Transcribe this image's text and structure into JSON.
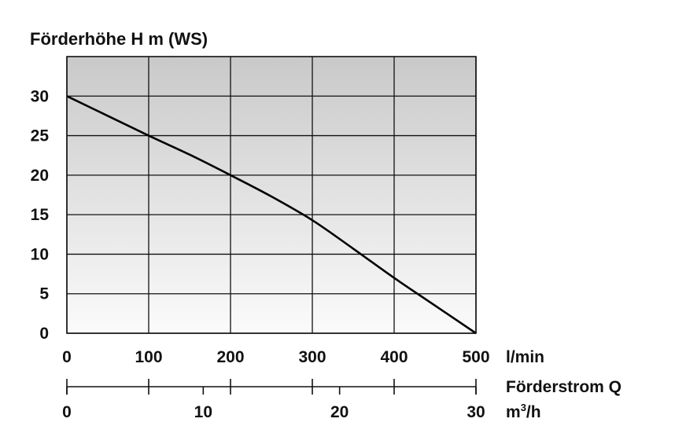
{
  "chart_data": {
    "type": "line",
    "ylabel": "Förderhöhe H m (WS)",
    "y_ticks": [
      "0",
      "5",
      "10",
      "15",
      "20",
      "25",
      "30"
    ],
    "ylim": [
      0,
      35
    ],
    "x_ticks_lmin": [
      "0",
      "100",
      "200",
      "300",
      "400",
      "500"
    ],
    "x_unit_lmin": "l/min",
    "xlim_lmin": [
      0,
      500
    ],
    "x2_label": "Förderstrom Q",
    "x2_ticks_m3h": [
      "0",
      "10",
      "20",
      "30"
    ],
    "x2_unit_base": "m",
    "x2_unit_sup": "3",
    "x2_unit_tail": "/h",
    "xlim_m3h": [
      0,
      30
    ],
    "grid": true,
    "series": [
      {
        "x": [
          0,
          50,
          100,
          150,
          200,
          250,
          300,
          350,
          400,
          450,
          500
        ],
        "values": [
          30,
          27.5,
          25,
          22.6,
          20,
          17.3,
          14.3,
          10.7,
          7,
          3.5,
          0
        ]
      }
    ]
  }
}
